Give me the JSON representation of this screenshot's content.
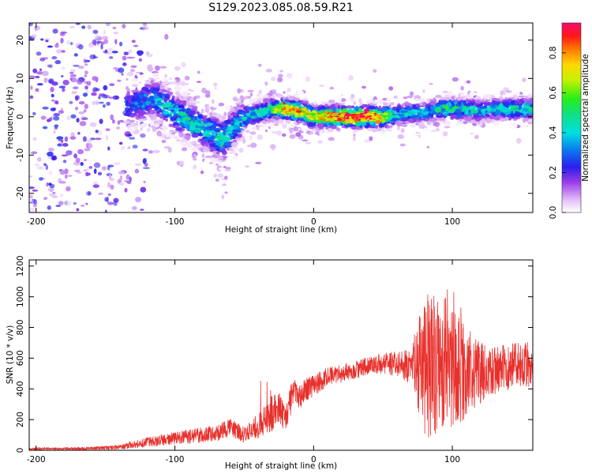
{
  "title": "S129.2023.085.08.59.R21",
  "chart_data": [
    {
      "type": "heatmap",
      "xlabel": "Height of straight line (km)",
      "ylabel": "Frequency (Hz)",
      "xlim": [
        -205,
        158
      ],
      "ylim": [
        -25,
        24.5
      ],
      "xticks": [
        -200,
        -100,
        0,
        100
      ],
      "yticks": [
        -20,
        -10,
        0,
        10,
        20
      ],
      "colorbar": {
        "label": "Normalized spectral amplitude",
        "range": [
          0,
          0.95
        ],
        "ticks": [
          0.0,
          0.2,
          0.4,
          0.6,
          0.8
        ]
      },
      "ridge": {
        "x": [
          -205,
          -150,
          -130,
          -115,
          -100,
          -85,
          -75,
          -65,
          -58,
          -50,
          -40,
          -30,
          -20,
          -10,
          0,
          10,
          20,
          30,
          40,
          50,
          60,
          70,
          80,
          90,
          100,
          110,
          120,
          130,
          140,
          150,
          158
        ],
        "y": [
          2,
          3,
          3,
          5,
          1,
          -2,
          -4,
          -6,
          -3,
          0,
          1,
          2,
          2,
          1.5,
          0,
          0,
          0,
          0,
          0,
          0,
          0.5,
          1,
          1,
          2,
          2,
          2,
          1.5,
          2,
          2,
          2,
          2
        ],
        "peak_amplitude": [
          0.05,
          0.2,
          0.35,
          0.4,
          0.5,
          0.5,
          0.45,
          0.55,
          0.4,
          0.45,
          0.5,
          0.55,
          0.9,
          0.8,
          0.7,
          0.85,
          0.9,
          0.95,
          0.95,
          0.7,
          0.45,
          0.45,
          0.4,
          0.5,
          0.55,
          0.5,
          0.45,
          0.45,
          0.5,
          0.5,
          0.5
        ]
      }
    },
    {
      "type": "line",
      "xlabel": "Height of straight line (km)",
      "ylabel": "SNR (10 * v/v)",
      "xlim": [
        -205,
        158
      ],
      "ylim": [
        0,
        1240
      ],
      "xticks": [
        -200,
        -100,
        0,
        100
      ],
      "yticks": [
        0,
        200,
        400,
        600,
        800,
        1000,
        1200
      ],
      "series": [
        {
          "color": "#e8302c",
          "envelope_x": [
            -205,
            -180,
            -160,
            -140,
            -130,
            -115,
            -100,
            -90,
            -80,
            -70,
            -60,
            -50,
            -40,
            -35,
            -30,
            -25,
            -20,
            -15,
            -10,
            -5,
            0,
            10,
            20,
            30,
            40,
            50,
            60,
            70,
            75,
            80,
            85,
            90,
            95,
            100,
            105,
            110,
            120,
            130,
            140,
            150,
            158
          ],
          "mean": [
            10,
            10,
            12,
            20,
            40,
            60,
            80,
            90,
            100,
            110,
            150,
            100,
            160,
            200,
            240,
            280,
            200,
            380,
            350,
            400,
            420,
            480,
            500,
            520,
            550,
            570,
            560,
            550,
            560,
            550,
            560,
            580,
            560,
            560,
            540,
            520,
            500,
            520,
            540,
            560,
            560
          ],
          "spread": [
            8,
            8,
            10,
            15,
            25,
            35,
            40,
            45,
            50,
            55,
            60,
            50,
            80,
            100,
            120,
            100,
            90,
            100,
            80,
            80,
            70,
            60,
            60,
            60,
            60,
            70,
            80,
            120,
            300,
            450,
            500,
            480,
            450,
            400,
            380,
            300,
            200,
            160,
            150,
            150,
            150
          ]
        }
      ]
    }
  ]
}
